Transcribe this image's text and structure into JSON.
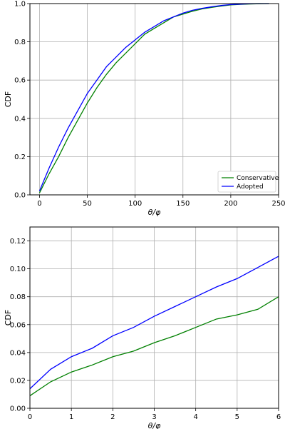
{
  "chart_data": [
    {
      "type": "line",
      "xlabel": "θ/φ",
      "ylabel": "CDF",
      "xlim": [
        -10,
        250
      ],
      "ylim": [
        0,
        1.0
      ],
      "xticks": [
        0,
        50,
        100,
        150,
        200,
        250
      ],
      "yticks": [
        0.0,
        0.2,
        0.4,
        0.6,
        0.8,
        1.0
      ],
      "xtick_labels": [
        "0",
        "50",
        "100",
        "150",
        "200",
        "250"
      ],
      "ytick_labels": [
        "0.0",
        "0.2",
        "0.4",
        "0.6",
        "0.8",
        "1.0"
      ],
      "grid": true,
      "legend_position": "bottom-right",
      "series": [
        {
          "name": "Conservative",
          "color": "#008000",
          "points": [
            [
              0,
              0.01
            ],
            [
              10,
              0.11
            ],
            [
              20,
              0.2
            ],
            [
              30,
              0.3
            ],
            [
              40,
              0.39
            ],
            [
              50,
              0.48
            ],
            [
              60,
              0.56
            ],
            [
              70,
              0.63
            ],
            [
              80,
              0.69
            ],
            [
              90,
              0.74
            ],
            [
              100,
              0.79
            ],
            [
              110,
              0.84
            ],
            [
              120,
              0.87
            ],
            [
              130,
              0.9
            ],
            [
              140,
              0.93
            ],
            [
              150,
              0.945
            ],
            [
              160,
              0.96
            ],
            [
              170,
              0.972
            ],
            [
              180,
              0.98
            ],
            [
              190,
              0.987
            ],
            [
              200,
              0.993
            ],
            [
              210,
              0.996
            ],
            [
              220,
              0.998
            ],
            [
              230,
              0.999
            ],
            [
              240,
              1.0
            ]
          ]
        },
        {
          "name": "Adopted",
          "color": "#0000ff",
          "points": [
            [
              0,
              0.02
            ],
            [
              10,
              0.14
            ],
            [
              20,
              0.25
            ],
            [
              30,
              0.35
            ],
            [
              40,
              0.44
            ],
            [
              50,
              0.53
            ],
            [
              60,
              0.6
            ],
            [
              70,
              0.67
            ],
            [
              80,
              0.72
            ],
            [
              90,
              0.77
            ],
            [
              100,
              0.81
            ],
            [
              110,
              0.85
            ],
            [
              120,
              0.88
            ],
            [
              130,
              0.91
            ],
            [
              140,
              0.93
            ],
            [
              150,
              0.95
            ],
            [
              160,
              0.965
            ],
            [
              170,
              0.975
            ],
            [
              180,
              0.983
            ],
            [
              190,
              0.99
            ],
            [
              200,
              0.995
            ],
            [
              210,
              0.997
            ],
            [
              220,
              0.999
            ],
            [
              230,
              1.0
            ],
            [
              240,
              1.0
            ]
          ]
        }
      ]
    },
    {
      "type": "line",
      "xlabel": "θ/φ",
      "ylabel": "CDF",
      "xlim": [
        0,
        6
      ],
      "ylim": [
        0,
        0.13
      ],
      "xticks": [
        0,
        1,
        2,
        3,
        4,
        5,
        6
      ],
      "yticks": [
        0.0,
        0.02,
        0.04,
        0.06,
        0.08,
        0.1,
        0.12
      ],
      "xtick_labels": [
        "0",
        "1",
        "2",
        "3",
        "4",
        "5",
        "6"
      ],
      "ytick_labels": [
        "0.00",
        "0.02",
        "0.04",
        "0.06",
        "0.08",
        "0.10",
        "0.12"
      ],
      "grid": true,
      "series": [
        {
          "name": "Conservative",
          "color": "#008000",
          "points": [
            [
              0,
              0.009
            ],
            [
              0.5,
              0.019
            ],
            [
              1.0,
              0.026
            ],
            [
              1.5,
              0.031
            ],
            [
              2.0,
              0.037
            ],
            [
              2.5,
              0.041
            ],
            [
              3.0,
              0.047
            ],
            [
              3.5,
              0.052
            ],
            [
              4.0,
              0.058
            ],
            [
              4.5,
              0.064
            ],
            [
              5.0,
              0.067
            ],
            [
              5.5,
              0.071
            ],
            [
              6.0,
              0.08
            ]
          ]
        },
        {
          "name": "Adopted",
          "color": "#0000ff",
          "points": [
            [
              0,
              0.014
            ],
            [
              0.5,
              0.028
            ],
            [
              1.0,
              0.037
            ],
            [
              1.5,
              0.043
            ],
            [
              2.0,
              0.052
            ],
            [
              2.5,
              0.058
            ],
            [
              3.0,
              0.066
            ],
            [
              3.5,
              0.073
            ],
            [
              4.0,
              0.08
            ],
            [
              4.5,
              0.087
            ],
            [
              5.0,
              0.093
            ],
            [
              5.5,
              0.101
            ],
            [
              6.0,
              0.109
            ]
          ]
        }
      ]
    }
  ]
}
